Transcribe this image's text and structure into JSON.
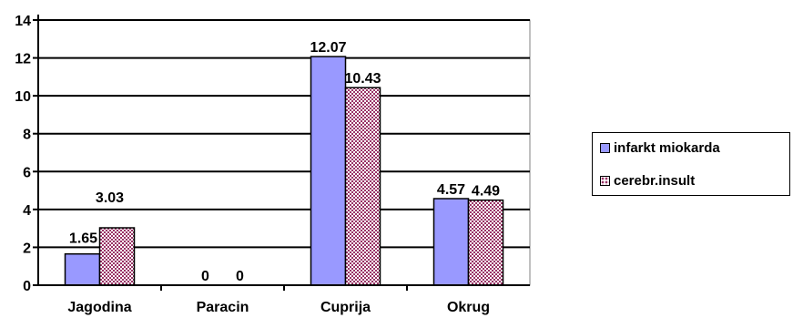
{
  "chart_data": {
    "type": "bar",
    "categories": [
      "Jagodina",
      "Paracin",
      "Cuprija",
      "Okrug"
    ],
    "series": [
      {
        "name": "infarkt miokarda",
        "values": [
          1.65,
          0,
          12.07,
          4.57
        ],
        "labels": [
          "1.65",
          "0",
          "12.07",
          "4.57"
        ]
      },
      {
        "name": "cerebr.insult",
        "values": [
          3.03,
          0,
          10.43,
          4.49
        ],
        "labels": [
          "3.03",
          "0",
          "10.43",
          "4.49"
        ]
      }
    ],
    "ylim": [
      0,
      14
    ],
    "yticks": [
      0,
      2,
      4,
      6,
      8,
      10,
      12,
      14
    ],
    "grid": true,
    "legend_position": "right",
    "colors": {
      "series0": "#9999ff",
      "series1_pattern": "#993366",
      "plot_bg": "#ffffff",
      "grid": "#000000"
    }
  }
}
